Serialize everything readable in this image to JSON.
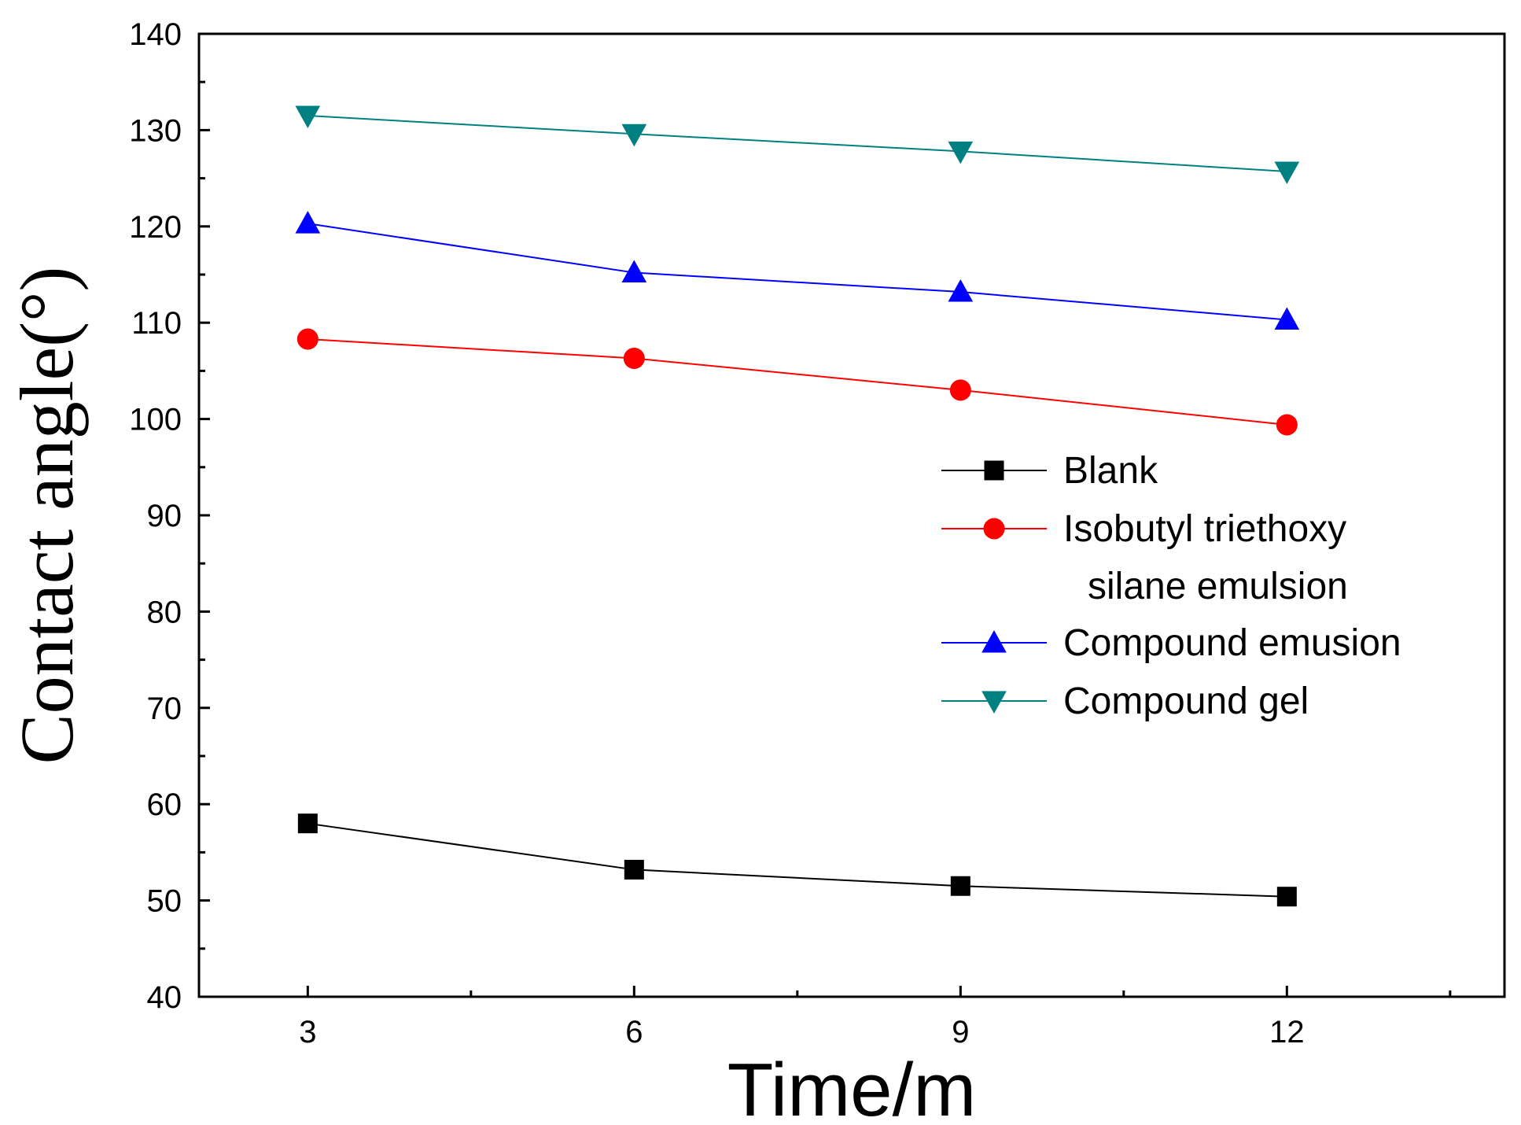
{
  "chart_data": {
    "type": "line",
    "title": "",
    "xlabel": "Time/m",
    "ylabel": "Contact angle(°)",
    "x": [
      3,
      6,
      9,
      12
    ],
    "xlim": [
      2,
      14
    ],
    "ylim": [
      40,
      140
    ],
    "xticks": [
      3,
      6,
      9,
      12
    ],
    "xtick_labels": [
      "3",
      "6",
      "9",
      "12"
    ],
    "xminor_ticks": [
      4.5,
      7.5,
      10.5,
      13.5
    ],
    "yticks": [
      40,
      50,
      60,
      70,
      80,
      90,
      100,
      110,
      120,
      130,
      140
    ],
    "ytick_labels": [
      "40",
      "50",
      "60",
      "70",
      "80",
      "90",
      "100",
      "110",
      "120",
      "130",
      "140"
    ],
    "yminor_ticks": [
      45,
      55,
      65,
      75,
      85,
      95,
      105,
      115,
      125,
      135
    ],
    "grid": false,
    "legend_position": "right",
    "series": [
      {
        "name": "Blank",
        "values": [
          58.0,
          53.2,
          51.5,
          50.4
        ],
        "color": "#000000",
        "marker": "square"
      },
      {
        "name": "Isobutyl triethoxy silane emulsion",
        "legend_lines": [
          " Isobutyl triethoxy",
          "silane emulsion"
        ],
        "values": [
          108.3,
          106.3,
          103.0,
          99.4
        ],
        "color": "#ff0000",
        "marker": "circle"
      },
      {
        "name": "Compound emusion",
        "values": [
          120.3,
          115.2,
          113.2,
          110.3
        ],
        "color": "#0000ff",
        "marker": "triangle-up"
      },
      {
        "name": "Compound gel",
        "values": [
          131.5,
          129.6,
          127.8,
          125.7
        ],
        "color": "#008080",
        "marker": "triangle-down"
      }
    ]
  }
}
